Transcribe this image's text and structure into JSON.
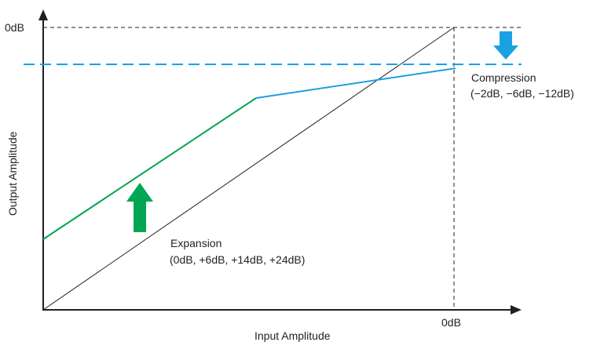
{
  "chart_data": {
    "type": "line",
    "xlabel": "Input Amplitude",
    "ylabel": "Output Amplitude",
    "x_tick_label": "0dB",
    "y_tick_label": "0dB",
    "annotations": {
      "compression_title": "Compression",
      "compression_values": "(−2dB, −6dB, −12dB)",
      "expansion_title": "Expansion",
      "expansion_values": "(0dB, +6dB, +14dB, +24dB)"
    },
    "colors": {
      "axis": "#231f20",
      "expansion": "#00a651",
      "compression": "#1ba1e2",
      "unity": "#231f20",
      "guide": "#231f20"
    },
    "lines": [
      {
        "role": "unity-gain"
      },
      {
        "role": "expansion-segment"
      },
      {
        "role": "compression-segment"
      },
      {
        "role": "limit-threshold-dashed"
      }
    ],
    "arrows": {
      "expansion": "up-arrow-icon",
      "compression": "down-arrow-icon"
    }
  }
}
